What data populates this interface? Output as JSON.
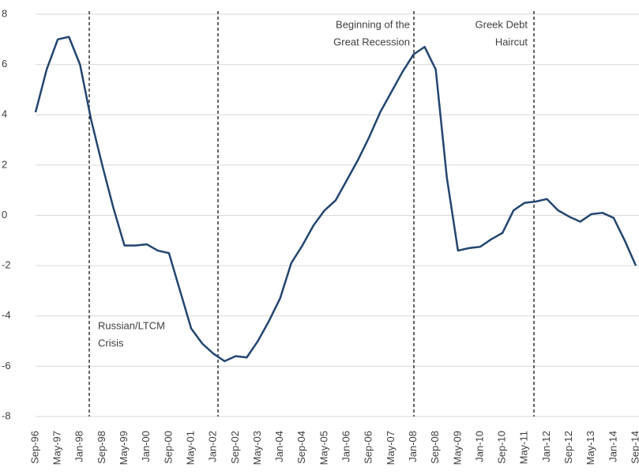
{
  "chart_data": {
    "type": "line",
    "categories": [
      "Sep-96",
      null,
      "May-97",
      null,
      "Jan-98",
      null,
      "Sep-98",
      null,
      "May-99",
      null,
      "Jan-00",
      null,
      "Sep-00",
      null,
      "May-01",
      null,
      "Jan-02",
      null,
      "Sep-02",
      null,
      "May-03",
      null,
      "Jan-04",
      null,
      "Sep-04",
      null,
      "May-05",
      null,
      "Jan-06",
      null,
      "Sep-06",
      null,
      "May-07",
      null,
      "Jan-08",
      null,
      "Sep-08",
      null,
      "May-09",
      null,
      "Jan-10",
      null,
      "Sep-10",
      null,
      "May-11",
      null,
      "Jan-12",
      null,
      "Sep-12",
      null,
      "May-13",
      null,
      "Jan-14",
      null,
      "Sep-14"
    ],
    "values": [
      4.1,
      5.8,
      7.0,
      7.1,
      6.0,
      3.8,
      2.0,
      0.3,
      -1.2,
      -1.2,
      -1.15,
      -1.4,
      -1.5,
      -3.0,
      -4.5,
      -5.1,
      -5.5,
      -5.8,
      -5.6,
      -5.65,
      -5.0,
      -4.2,
      -3.3,
      -1.9,
      -1.2,
      -0.4,
      0.2,
      0.6,
      1.4,
      2.2,
      3.1,
      4.1,
      4.9,
      5.7,
      6.4,
      6.7,
      5.8,
      1.5,
      -1.4,
      -1.3,
      -1.25,
      -0.95,
      -0.7,
      0.2,
      0.5,
      0.55,
      0.65,
      0.2,
      -0.05,
      -0.25,
      0.05,
      0.1,
      -0.1,
      -1.0,
      -2.0
    ],
    "color": "#23466f",
    "ylim": [
      -8,
      8
    ],
    "yticks": [
      -8,
      -6,
      -4,
      -2,
      0,
      2,
      4,
      6,
      8
    ],
    "grid": true,
    "annotations": [
      {
        "lines": [
          "Russian/LTCM",
          "Crisis"
        ]
      },
      {
        "lines": [
          "Beginning of the",
          "Great Recession"
        ]
      },
      {
        "lines": [
          "Greek Debt",
          "Haircut"
        ]
      }
    ]
  }
}
